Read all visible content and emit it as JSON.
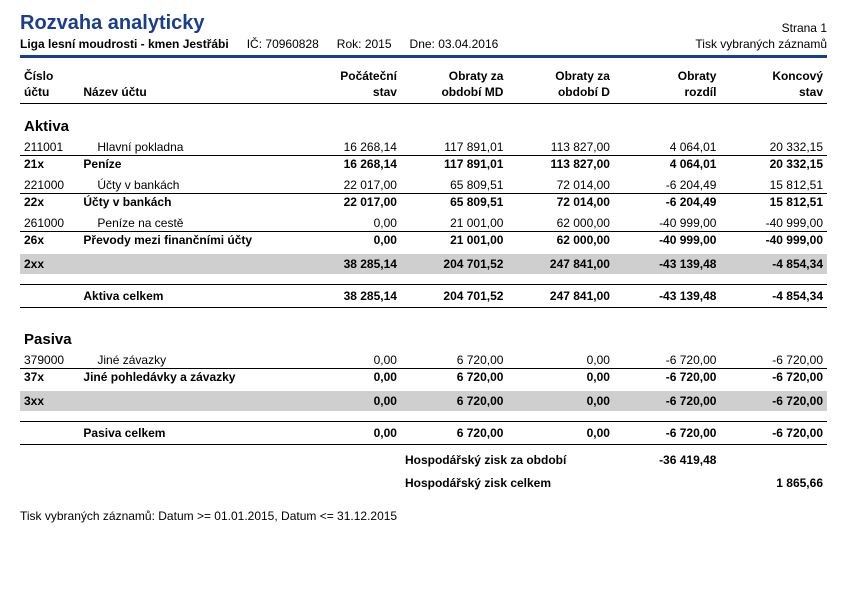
{
  "header": {
    "title": "Rozvaha analyticky",
    "org": "Liga lesní moudrosti - kmen Jestřábi",
    "ic_label": "IČ:",
    "ic": "70960828",
    "rok_label": "Rok:",
    "rok": "2015",
    "dne_label": "Dne:",
    "dne": "03.04.2016",
    "page_label": "Strana 1",
    "print_type": "Tisk vybraných záznamů"
  },
  "columns": {
    "c1a": "Číslo",
    "c1b": "účtu",
    "c2": "Název účtu",
    "c3a": "Počáteční",
    "c3b": "stav",
    "c4a": "Obraty za",
    "c4b": "období MD",
    "c5a": "Obraty za",
    "c5b": "období D",
    "c6a": "Obraty",
    "c6b": "rozdíl",
    "c7a": "Koncový",
    "c7b": "stav"
  },
  "aktiva": {
    "title": "Aktiva",
    "rows": [
      {
        "num": "211001",
        "name": "Hlavní pokladna",
        "v": [
          "16 268,14",
          "117 891,01",
          "113 827,00",
          "4 064,01",
          "20 332,15"
        ]
      },
      {
        "num": "21x",
        "name": "Peníze",
        "v": [
          "16 268,14",
          "117 891,01",
          "113 827,00",
          "4 064,01",
          "20 332,15"
        ],
        "bold": true,
        "line": true
      },
      {
        "num": "221000",
        "name": "Účty v bankách",
        "v": [
          "22 017,00",
          "65 809,51",
          "72 014,00",
          "-6 204,49",
          "15 812,51"
        ],
        "gap": true
      },
      {
        "num": "22x",
        "name": "Účty v bankách",
        "v": [
          "22 017,00",
          "65 809,51",
          "72 014,00",
          "-6 204,49",
          "15 812,51"
        ],
        "bold": true,
        "line": true
      },
      {
        "num": "261000",
        "name": "Peníze na cestě",
        "v": [
          "0,00",
          "21 001,00",
          "62 000,00",
          "-40 999,00",
          "-40 999,00"
        ],
        "gap": true
      },
      {
        "num": "26x",
        "name": "Převody mezi finančními účty",
        "v": [
          "0,00",
          "21 001,00",
          "62 000,00",
          "-40 999,00",
          "-40 999,00"
        ],
        "bold": true,
        "line": true
      }
    ],
    "gray": {
      "num": "2xx",
      "v": [
        "38 285,14",
        "204 701,52",
        "247 841,00",
        "-43 139,48",
        "-4 854,34"
      ]
    },
    "total": {
      "name": "Aktiva celkem",
      "v": [
        "38 285,14",
        "204 701,52",
        "247 841,00",
        "-43 139,48",
        "-4 854,34"
      ]
    }
  },
  "pasiva": {
    "title": "Pasiva",
    "rows": [
      {
        "num": "379000",
        "name": "Jiné závazky",
        "v": [
          "0,00",
          "6 720,00",
          "0,00",
          "-6 720,00",
          "-6 720,00"
        ]
      },
      {
        "num": "37x",
        "name": "Jiné pohledávky a závazky",
        "v": [
          "0,00",
          "6 720,00",
          "0,00",
          "-6 720,00",
          "-6 720,00"
        ],
        "bold": true,
        "line": true
      }
    ],
    "gray": {
      "num": "3xx",
      "v": [
        "0,00",
        "6 720,00",
        "0,00",
        "-6 720,00",
        "-6 720,00"
      ]
    },
    "total": {
      "name": "Pasiva celkem",
      "v": [
        "0,00",
        "6 720,00",
        "0,00",
        "-6 720,00",
        "-6 720,00"
      ]
    }
  },
  "hz": {
    "line1_label": "Hospodářský zisk za období",
    "line1_val": "-36 419,48",
    "line2_label": "Hospodářský zisk celkem",
    "line2_val": "1 865,66"
  },
  "footer": "Tisk vybraných záznamů: Datum >= 01.01.2015, Datum <= 31.12.2015"
}
